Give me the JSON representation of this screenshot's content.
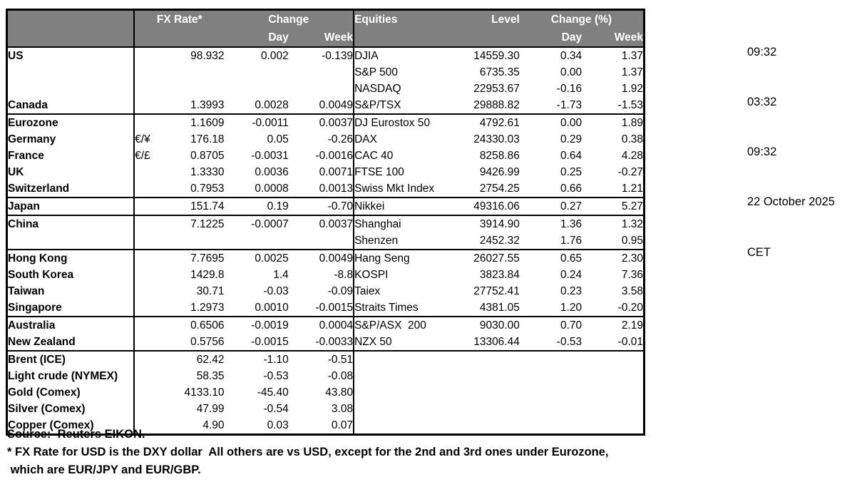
{
  "table": {
    "header": {
      "fx_rate": "FX Rate*",
      "change": "Change",
      "day": "Day",
      "week": "Week",
      "equities": "Equities",
      "level": "Level",
      "change_pct": "Change (%)"
    },
    "rows": [
      {
        "label": "US",
        "pair": "",
        "fx": "98.932",
        "fx_day": "0.002",
        "fx_week": "-0.139",
        "equity": "DJIA",
        "level": "14559.30",
        "eq_day": "0.34",
        "eq_week": "1.37"
      },
      {
        "label": "",
        "pair": "",
        "fx": "",
        "fx_day": "",
        "fx_week": "",
        "equity": "S&P 500",
        "level": "6735.35",
        "eq_day": "0.00",
        "eq_week": "1.37"
      },
      {
        "label": "",
        "pair": "",
        "fx": "",
        "fx_day": "",
        "fx_week": "",
        "equity": "NASDAQ",
        "level": "22953.67",
        "eq_day": "-0.16",
        "eq_week": "1.92"
      },
      {
        "label": "Canada",
        "pair": "",
        "fx": "1.3993",
        "fx_day": "0.0028",
        "fx_week": "0.0049",
        "equity": "S&P/TSX",
        "level": "29888.82",
        "eq_day": "-1.73",
        "eq_week": "-1.53",
        "group_end": true
      },
      {
        "label": "Eurozone",
        "pair": "",
        "fx": "1.1609",
        "fx_day": "-0.0011",
        "fx_week": "0.0037",
        "equity": "DJ Eurostox 50",
        "level": "4792.61",
        "eq_day": "0.00",
        "eq_week": "1.89"
      },
      {
        "label": "Germany",
        "indent": true,
        "pair": "€/¥",
        "fx": "176.18",
        "fx_day": "0.05",
        "fx_week": "-0.26",
        "equity": "DAX",
        "level": "24330.03",
        "eq_day": "0.29",
        "eq_week": "0.38"
      },
      {
        "label": "France",
        "indent": true,
        "pair": "€/£",
        "fx": "0.8705",
        "fx_day": "-0.0031",
        "fx_week": "-0.0016",
        "equity": "CAC 40",
        "level": "8258.86",
        "eq_day": "0.64",
        "eq_week": "4.28"
      },
      {
        "label": "UK",
        "pair": "",
        "fx": "1.3330",
        "fx_day": "0.0036",
        "fx_week": "0.0071",
        "equity": "FTSE 100",
        "level": "9426.99",
        "eq_day": "0.25",
        "eq_week": "-0.27"
      },
      {
        "label": "Switzerland",
        "pair": "",
        "fx": "0.7953",
        "fx_day": "0.0008",
        "fx_week": "0.0013",
        "equity": "Swiss Mkt Index",
        "level": "2754.25",
        "eq_day": "0.66",
        "eq_week": "1.21",
        "group_end": true
      },
      {
        "label": "Japan",
        "pair": "",
        "fx": "151.74",
        "fx_day": "0.19",
        "fx_week": "-0.70",
        "equity": "Nikkei",
        "level": "49316.06",
        "eq_day": "0.27",
        "eq_week": "5.27",
        "group_end": true
      },
      {
        "label": "China",
        "pair": "",
        "fx": "7.1225",
        "fx_day": "-0.0007",
        "fx_week": "0.0037",
        "equity": "Shanghai",
        "level": "3914.90",
        "eq_day": "1.36",
        "eq_week": "1.32"
      },
      {
        "label": "",
        "pair": "",
        "fx": "",
        "fx_day": "",
        "fx_week": "",
        "equity": "Shenzen",
        "level": "2452.32",
        "eq_day": "1.76",
        "eq_week": "0.95",
        "group_end": true
      },
      {
        "label": "Hong Kong",
        "pair": "",
        "fx": "7.7695",
        "fx_day": "0.0025",
        "fx_week": "0.0049",
        "equity": "Hang Seng",
        "level": "26027.55",
        "eq_day": "0.65",
        "eq_week": "2.30"
      },
      {
        "label": "South Korea",
        "pair": "",
        "fx": "1429.8",
        "fx_day": "1.4",
        "fx_week": "-8.8",
        "equity": "KOSPI",
        "level": "3823.84",
        "eq_day": "0.24",
        "eq_week": "7.36"
      },
      {
        "label": "Taiwan",
        "pair": "",
        "fx": "30.71",
        "fx_day": "-0.03",
        "fx_week": "-0.09",
        "equity": "Taiex",
        "level": "27752.41",
        "eq_day": "0.23",
        "eq_week": "3.58"
      },
      {
        "label": "Singapore",
        "pair": "",
        "fx": "1.2973",
        "fx_day": "0.0010",
        "fx_week": "-0.0015",
        "equity": "Straits Times",
        "level": "4381.05",
        "eq_day": "1.20",
        "eq_week": "-0.20",
        "group_end": true
      },
      {
        "label": "Australia",
        "pair": "",
        "fx": "0.6506",
        "fx_day": "-0.0019",
        "fx_week": "0.0004",
        "equity": "S&P/ASX  200",
        "level": "9030.00",
        "eq_day": "0.70",
        "eq_week": "2.19"
      },
      {
        "label": "New Zealand",
        "pair": "",
        "fx": "0.5756",
        "fx_day": "-0.0015",
        "fx_week": "-0.0033",
        "equity": "NZX 50",
        "level": "13306.44",
        "eq_day": "-0.53",
        "eq_week": "-0.01",
        "group_end": true
      },
      {
        "label": "Brent (ICE)",
        "pair": "",
        "fx": "62.42",
        "fx_day": "-1.10",
        "fx_week": "-0.51",
        "equity": "",
        "level": "",
        "eq_day": "",
        "eq_week": ""
      },
      {
        "label": "Light crude (NYMEX)",
        "pair": "",
        "fx": "58.35",
        "fx_day": "-0.53",
        "fx_week": "-0.08",
        "equity": "",
        "level": "",
        "eq_day": "",
        "eq_week": ""
      },
      {
        "label": "Gold (Comex)",
        "pair": "",
        "fx": "4133.10",
        "fx_day": "-45.40",
        "fx_week": "43.80",
        "equity": "",
        "level": "",
        "eq_day": "",
        "eq_week": ""
      },
      {
        "label": "Silver (Comex)",
        "pair": "",
        "fx": "47.99",
        "fx_day": "-0.54",
        "fx_week": "3.08",
        "equity": "",
        "level": "",
        "eq_day": "",
        "eq_week": ""
      },
      {
        "label": "Copper (Comex)",
        "pair": "",
        "fx": "4.90",
        "fx_day": "0.03",
        "fx_week": "0.07",
        "equity": "",
        "level": "",
        "eq_day": "",
        "eq_week": ""
      }
    ]
  },
  "timestamps": [
    "09:32",
    "03:32",
    "09:32",
    "22 October 2025",
    "CET"
  ],
  "footer": {
    "source": "Source:  Reuters EIKON.",
    "note_line1": "* FX Rate for USD is the DXY dollar  All others are vs USD, except for the 2nd and 3rd ones under Eurozone,",
    "note_line2": " which are EUR/JPY and EUR/GBP."
  },
  "colors": {
    "header_bg": "#808080",
    "header_text": "#ffffff",
    "border": "#000000",
    "body_text": "#000000"
  }
}
